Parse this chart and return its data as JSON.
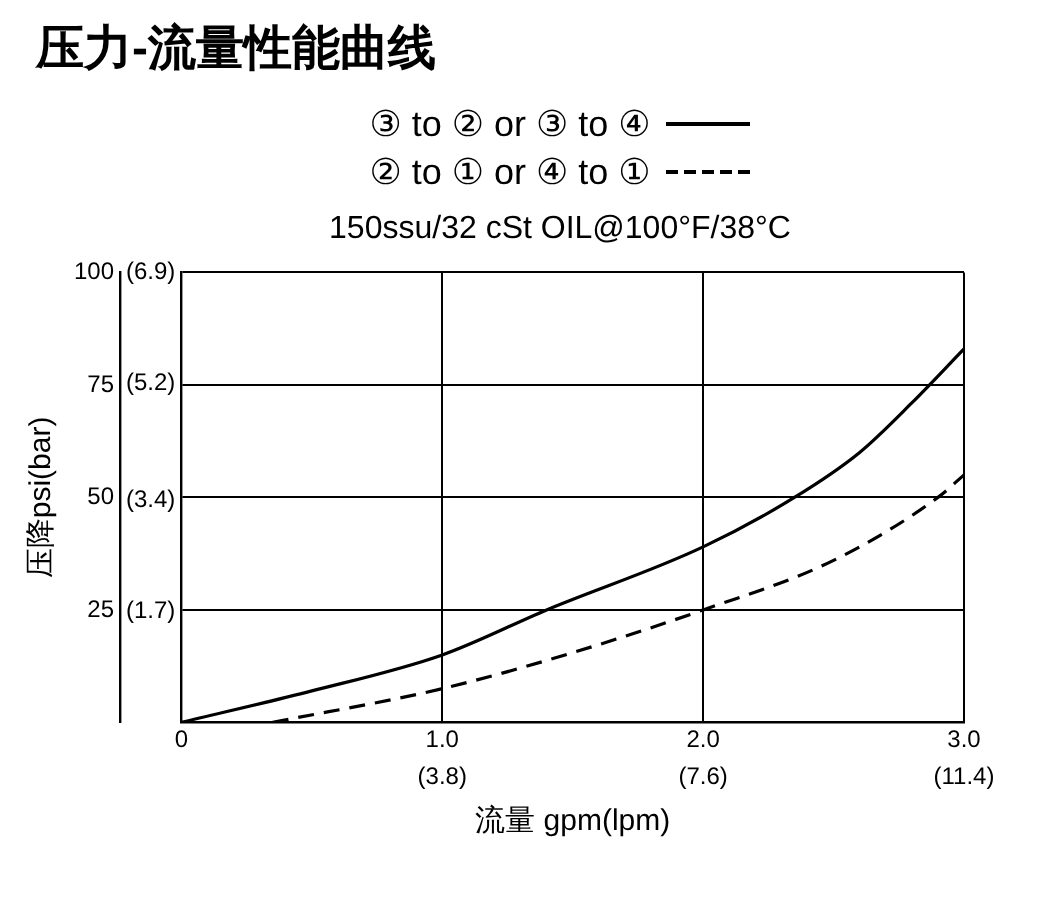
{
  "chart_data": {
    "type": "line",
    "title": "压力-流量性能曲线",
    "subtitle": "150ssu/32 cSt OIL@100°F/38°C",
    "xlabel": "流量 gpm(lpm)",
    "ylabel": "压降psi(bar)",
    "xlim": [
      0,
      3
    ],
    "xticks": [
      0,
      {
        "value": 1,
        "label": "1.0"
      },
      {
        "value": 2,
        "label": "2.0"
      },
      {
        "value": 3,
        "label": "3.0"
      }
    ],
    "x2lim": [
      0,
      11.4
    ],
    "x2ticks": [
      {
        "value": 3.8,
        "label": "(3.8)"
      },
      {
        "value": 7.6,
        "label": "(7.6)"
      },
      {
        "value": 11.4,
        "label": "(11.4)"
      }
    ],
    "ylim": [
      0,
      100
    ],
    "yticks": [
      25,
      50,
      75,
      100
    ],
    "y2lim": [
      0,
      6.9
    ],
    "y2ticks": [
      {
        "value": 1.7,
        "label": "(1.7)"
      },
      {
        "value": 3.4,
        "label": "(3.4)"
      },
      {
        "value": 5.2,
        "label": "(5.2)"
      },
      {
        "value": 6.9,
        "label": "(6.9)"
      }
    ],
    "grid": true,
    "legend": "top",
    "marker": "none",
    "series": [
      {
        "name": "③ to ② or ③ to ④",
        "color": "#000000",
        "line_style": "solid",
        "x": [
          0,
          0.5,
          1,
          1.4,
          2,
          2.35,
          2.6,
          2.8,
          3
        ],
        "values": [
          0,
          7,
          15,
          25,
          39,
          50,
          60,
          71,
          83
        ]
      },
      {
        "name": "② to ① or ④ to ①",
        "color": "#000000",
        "line_style": "dashed",
        "x": [
          0.35,
          1,
          1.5,
          2,
          2.5,
          2.9,
          3
        ],
        "values": [
          0,
          7.5,
          15.5,
          25,
          36,
          50,
          55
        ]
      }
    ]
  }
}
